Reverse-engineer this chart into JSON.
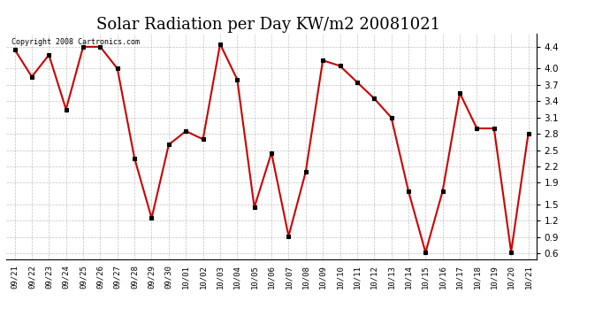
{
  "title": "Solar Radiation per Day KW/m2 20081021",
  "copyright_text": "Copyright 2008 Cartronics.com",
  "x_labels": [
    "09/21",
    "09/22",
    "09/23",
    "09/24",
    "09/25",
    "09/26",
    "09/27",
    "09/28",
    "09/29",
    "09/30",
    "10/01",
    "10/02",
    "10/03",
    "10/04",
    "10/05",
    "10/06",
    "10/07",
    "10/08",
    "10/09",
    "10/10",
    "10/11",
    "10/12",
    "10/13",
    "10/14",
    "10/15",
    "10/16",
    "10/17",
    "10/18",
    "10/19",
    "10/20",
    "10/21"
  ],
  "y_values": [
    4.35,
    3.85,
    4.25,
    3.25,
    4.4,
    4.4,
    4.0,
    2.35,
    1.25,
    2.6,
    2.85,
    2.7,
    4.45,
    3.8,
    1.45,
    2.45,
    0.92,
    2.1,
    4.15,
    4.05,
    3.75,
    3.45,
    3.1,
    1.75,
    0.62,
    1.75,
    3.55,
    2.9,
    2.9,
    0.63,
    2.8
  ],
  "line_color": "#cc0000",
  "marker_color": "#000000",
  "bg_color": "#ffffff",
  "grid_color": "#bbbbbb",
  "title_fontsize": 13,
  "ylim": [
    0.5,
    4.65
  ],
  "yticks": [
    0.6,
    0.9,
    1.2,
    1.5,
    1.9,
    2.2,
    2.5,
    2.8,
    3.1,
    3.4,
    3.7,
    4.0,
    4.4
  ]
}
